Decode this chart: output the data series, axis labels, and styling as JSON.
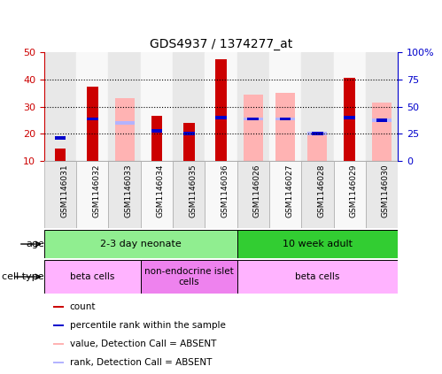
{
  "title": "GDS4937 / 1374277_at",
  "samples": [
    "GSM1146031",
    "GSM1146032",
    "GSM1146033",
    "GSM1146034",
    "GSM1146035",
    "GSM1146036",
    "GSM1146026",
    "GSM1146027",
    "GSM1146028",
    "GSM1146029",
    "GSM1146030"
  ],
  "count_values": [
    14.5,
    37.5,
    null,
    26.5,
    24.0,
    47.5,
    null,
    null,
    null,
    40.5,
    null
  ],
  "percentile_rank": [
    18.5,
    25.5,
    null,
    21.0,
    20.0,
    26.0,
    25.5,
    25.5,
    20.0,
    26.0,
    25.0
  ],
  "absent_value": [
    null,
    null,
    33.0,
    null,
    null,
    null,
    34.5,
    35.0,
    19.5,
    null,
    31.5
  ],
  "absent_rank": [
    null,
    null,
    24.0,
    null,
    null,
    null,
    25.5,
    25.5,
    20.0,
    null,
    25.0
  ],
  "count_color": "#cc0000",
  "percentile_color": "#0000cc",
  "absent_value_color": "#ffb3b3",
  "absent_rank_color": "#b3b3ff",
  "ylim_left": [
    10,
    50
  ],
  "ylim_right": [
    0,
    100
  ],
  "yticks_left": [
    10,
    20,
    30,
    40,
    50
  ],
  "yticks_right": [
    0,
    25,
    50,
    75,
    100
  ],
  "yticklabels_right": [
    "0",
    "25",
    "50",
    "75",
    "100%"
  ],
  "bar_bottom": 10,
  "age_groups": [
    {
      "label": "2-3 day neonate",
      "start": 0,
      "end": 6,
      "color": "#90ee90"
    },
    {
      "label": "10 week adult",
      "start": 6,
      "end": 11,
      "color": "#32cd32"
    }
  ],
  "cell_groups": [
    {
      "label": "beta cells",
      "start": 0,
      "end": 3,
      "color": "#ffb3ff"
    },
    {
      "label": "non-endocrine islet\ncells",
      "start": 3,
      "end": 6,
      "color": "#ee82ee"
    },
    {
      "label": "beta cells",
      "start": 6,
      "end": 11,
      "color": "#ffb3ff"
    }
  ],
  "legend_items": [
    {
      "color": "#cc0000",
      "label": "count"
    },
    {
      "color": "#0000cc",
      "label": "percentile rank within the sample"
    },
    {
      "color": "#ffb3b3",
      "label": "value, Detection Call = ABSENT"
    },
    {
      "color": "#b3b3ff",
      "label": "rank, Detection Call = ABSENT"
    }
  ],
  "bar_width": 0.35,
  "absent_bar_width": 0.6
}
